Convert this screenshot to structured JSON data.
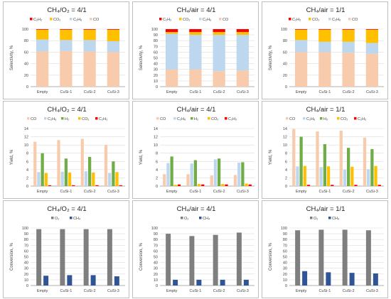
{
  "chart_data": [
    {
      "id": "sel-o2",
      "type": "stacked_bar",
      "title": "CH₄/O₂ = 4/1",
      "ylabel": "Selectivity, %",
      "ylim": [
        0,
        100
      ],
      "ystep": 20,
      "categories": [
        "Empty",
        "CuSi-1",
        "CuSi-2",
        "CuSi-3"
      ],
      "legend": [
        "C₂H₂",
        "CO₂",
        "C₂H₆",
        "CO"
      ],
      "series": [
        {
          "name": "CO",
          "color": "#f8cbad",
          "values": [
            61,
            62,
            61,
            60
          ]
        },
        {
          "name": "C₂H₆",
          "color": "#bdd7ee",
          "values": [
            21,
            19,
            20,
            19
          ]
        },
        {
          "name": "CO₂",
          "color": "#ffc000",
          "values": [
            17,
            18,
            18,
            20
          ]
        },
        {
          "name": "C₂H₂",
          "color": "#ff0000",
          "values": [
            1,
            1,
            1,
            1
          ]
        }
      ]
    },
    {
      "id": "sel-air4",
      "type": "stacked_bar",
      "title": "CH₄/air = 4/1",
      "ylabel": "Selectivity, %",
      "ylim": [
        0,
        100
      ],
      "ystep": 10,
      "categories": [
        "Empty",
        "CuSi-1",
        "CuSi-2",
        "CuSi-3"
      ],
      "legend": [
        "C₂H₂",
        "CO₂",
        "C₂H₆",
        "CO"
      ],
      "series": [
        {
          "name": "CO",
          "color": "#f8cbad",
          "values": [
            30,
            30,
            27,
            28
          ]
        },
        {
          "name": "C₂H₆",
          "color": "#bdd7ee",
          "values": [
            62,
            60,
            63,
            62
          ]
        },
        {
          "name": "CO₂",
          "color": "#ffc000",
          "values": [
            3,
            5,
            5,
            5
          ]
        },
        {
          "name": "C₂H₂",
          "color": "#ff0000",
          "values": [
            5,
            5,
            5,
            5
          ]
        }
      ]
    },
    {
      "id": "sel-air1",
      "type": "stacked_bar",
      "title": "CH₄/air = 1/1",
      "ylabel": "Selectivity, %",
      "ylim": [
        0,
        100
      ],
      "ystep": 20,
      "categories": [
        "Empty",
        "CuSi-1",
        "CuSi-2",
        "CuSi-3"
      ],
      "legend": [
        "C₂H₂",
        "CO₂",
        "C₂H₆",
        "CO"
      ],
      "series": [
        {
          "name": "CO",
          "color": "#f8cbad",
          "values": [
            60,
            60,
            59,
            57
          ]
        },
        {
          "name": "C₂H₆",
          "color": "#bdd7ee",
          "values": [
            21,
            18,
            19,
            19
          ]
        },
        {
          "name": "CO₂",
          "color": "#ffc000",
          "values": [
            18,
            21,
            21,
            23
          ]
        },
        {
          "name": "C₂H₂",
          "color": "#ff0000",
          "values": [
            1,
            1,
            1,
            1
          ]
        }
      ]
    },
    {
      "id": "yield-o2",
      "type": "bar",
      "title": "CH₄/O₂ = 4/1",
      "ylabel": "Yield, %",
      "ylim": [
        0,
        14
      ],
      "ystep": 2,
      "categories": [
        "Empty",
        "CuSi-1",
        "CuSi-2",
        "CuSi-3"
      ],
      "legend": [
        "CO",
        "C₂H₆",
        "H₂",
        "CO₂",
        "C₂H₂"
      ],
      "series": [
        {
          "name": "CO",
          "color": "#f8cbad",
          "values": [
            10.8,
            11.2,
            11.5,
            10.0
          ]
        },
        {
          "name": "C₂H₆",
          "color": "#bdd7ee",
          "values": [
            3.4,
            3.5,
            3.6,
            3.2
          ]
        },
        {
          "name": "H₂",
          "color": "#70ad47",
          "values": [
            8.0,
            6.7,
            7.1,
            6.0
          ]
        },
        {
          "name": "CO₂",
          "color": "#ffc000",
          "values": [
            3.2,
            3.3,
            3.3,
            3.4
          ]
        },
        {
          "name": "C₂H₂",
          "color": "#ff0000",
          "values": [
            0.2,
            0.2,
            0.2,
            0.2
          ]
        }
      ]
    },
    {
      "id": "yield-air4",
      "type": "bar",
      "title": "CH₄/air = 4/1",
      "ylabel": "Yield, %",
      "ylim": [
        0,
        14
      ],
      "ystep": 2,
      "categories": [
        "Empty",
        "CuSi-1",
        "CuSi-2",
        "CuSi-3"
      ],
      "legend": [
        "CO",
        "C₂H₆",
        "H₂",
        "CO₂",
        "C₂H₂"
      ],
      "series": [
        {
          "name": "CO",
          "color": "#f8cbad",
          "values": [
            2.9,
            2.9,
            2.6,
            2.7
          ]
        },
        {
          "name": "C₂H₆",
          "color": "#bdd7ee",
          "values": [
            5.6,
            5.5,
            6.5,
            5.7
          ]
        },
        {
          "name": "H₂",
          "color": "#70ad47",
          "values": [
            7.2,
            6.3,
            6.7,
            5.8
          ]
        },
        {
          "name": "CO₂",
          "color": "#ffc000",
          "values": [
            0.3,
            0.5,
            0.5,
            0.6
          ]
        },
        {
          "name": "C₂H₂",
          "color": "#ff0000",
          "values": [
            0.4,
            0.4,
            0.4,
            0.4
          ]
        }
      ]
    },
    {
      "id": "yield-air1",
      "type": "bar",
      "title": "CH₄/air = 1/1",
      "ylabel": "Yield, %",
      "ylim": [
        0,
        14
      ],
      "ystep": 2,
      "categories": [
        "Empty",
        "CuSi-1",
        "CuSi-2",
        "CuSi-3"
      ],
      "legend": [
        "CO",
        "C₂H₆",
        "H₂",
        "CO₂",
        "C₂H₂"
      ],
      "series": [
        {
          "name": "CO",
          "color": "#f8cbad",
          "values": [
            13.9,
            13.3,
            13.5,
            11.8
          ]
        },
        {
          "name": "C₂H₆",
          "color": "#bdd7ee",
          "values": [
            4.8,
            4.6,
            4.0,
            4.1
          ]
        },
        {
          "name": "H₂",
          "color": "#70ad47",
          "values": [
            12.0,
            10.2,
            9.3,
            9.0
          ]
        },
        {
          "name": "CO₂",
          "color": "#ffc000",
          "values": [
            4.9,
            4.8,
            4.7,
            4.9
          ]
        },
        {
          "name": "C₂H₂",
          "color": "#ff0000",
          "values": [
            0.3,
            0.3,
            0.3,
            0.3
          ]
        }
      ]
    },
    {
      "id": "conv-o2",
      "type": "bar",
      "title": "CH₄/O₂ = 4/1",
      "ylabel": "Conversion, %",
      "ylim": [
        0,
        100
      ],
      "ystep": 10,
      "categories": [
        "Empty",
        "CuSi-1",
        "CuSi-2",
        "CuSi-3"
      ],
      "legend": [
        "O₂",
        "CH₄"
      ],
      "series": [
        {
          "name": "O₂",
          "color": "#7f7f7f",
          "values": [
            98,
            98,
            98,
            98
          ]
        },
        {
          "name": "CH₄",
          "color": "#2f5597",
          "values": [
            17,
            18,
            18,
            16
          ]
        }
      ]
    },
    {
      "id": "conv-air4",
      "type": "bar",
      "title": "CH₄/air = 4/1",
      "ylabel": "Conversion, %",
      "ylim": [
        0,
        100
      ],
      "ystep": 10,
      "categories": [
        "Empty",
        "CuSi-1",
        "CuSi-2",
        "CuSi-3"
      ],
      "legend": [
        "O₂",
        "CH₄"
      ],
      "series": [
        {
          "name": "O₂",
          "color": "#7f7f7f",
          "values": [
            90,
            86,
            88,
            92
          ]
        },
        {
          "name": "CH₄",
          "color": "#2f5597",
          "values": [
            10,
            10,
            10,
            10
          ]
        }
      ]
    },
    {
      "id": "conv-air1",
      "type": "bar",
      "title": "CH₄/air = 1/1",
      "ylabel": "Conversion, %",
      "ylim": [
        0,
        100
      ],
      "ystep": 10,
      "categories": [
        "Empty",
        "CuSi-1",
        "CuSi-2",
        "CuSi-3"
      ],
      "legend": [
        "O₂",
        "CH₄"
      ],
      "series": [
        {
          "name": "O₂",
          "color": "#7f7f7f",
          "values": [
            96,
            97,
            97,
            96
          ]
        },
        {
          "name": "CH₄",
          "color": "#2f5597",
          "values": [
            25,
            23,
            22,
            21
          ]
        }
      ]
    }
  ]
}
